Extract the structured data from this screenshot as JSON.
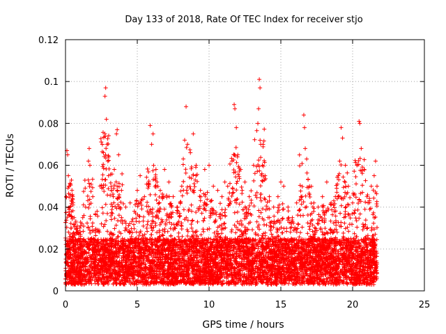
{
  "chart_data": {
    "type": "scatter",
    "title": "Day 133 of 2018, Rate Of TEC Index for receiver stjo",
    "xlabel": "GPS time / hours",
    "ylabel": "ROTI / TECUs",
    "xlim": [
      0,
      25
    ],
    "ylim": [
      0,
      0.12
    ],
    "x_ticks": [
      0,
      5,
      10,
      15,
      20,
      25
    ],
    "x_tick_labels": [
      "0",
      "5",
      "10",
      "15",
      "20",
      "25"
    ],
    "y_ticks": [
      0,
      0.02,
      0.04,
      0.06,
      0.08,
      0.1,
      0.12
    ],
    "y_tick_labels": [
      "0",
      "0.02",
      "0.04",
      "0.06",
      "0.08",
      "0.1",
      "0.12"
    ],
    "grid": true,
    "marker": "plus",
    "marker_color": "#ff0000",
    "series": [
      {
        "name": "ROTI",
        "points": [
          [
            0.05,
            0.045
          ],
          [
            0.1,
            0.067
          ],
          [
            0.15,
            0.065
          ],
          [
            0.2,
            0.055
          ],
          [
            0.25,
            0.05
          ],
          [
            0.3,
            0.04
          ],
          [
            0.4,
            0.03
          ],
          [
            0.5,
            0.045
          ],
          [
            0.6,
            0.035
          ],
          [
            0.8,
            0.028
          ],
          [
            1.0,
            0.03
          ],
          [
            1.2,
            0.035
          ],
          [
            1.4,
            0.04
          ],
          [
            1.6,
            0.062
          ],
          [
            1.65,
            0.068
          ],
          [
            1.7,
            0.06
          ],
          [
            1.9,
            0.045
          ],
          [
            2.2,
            0.038
          ],
          [
            2.5,
            0.032
          ],
          [
            2.75,
            0.093
          ],
          [
            2.8,
            0.097
          ],
          [
            2.85,
            0.082
          ],
          [
            2.9,
            0.07
          ],
          [
            2.95,
            0.062
          ],
          [
            3.0,
            0.055
          ],
          [
            3.2,
            0.048
          ],
          [
            3.4,
            0.058
          ],
          [
            3.55,
            0.075
          ],
          [
            3.6,
            0.077
          ],
          [
            3.7,
            0.065
          ],
          [
            3.9,
            0.048
          ],
          [
            4.2,
            0.04
          ],
          [
            4.5,
            0.042
          ],
          [
            4.8,
            0.038
          ],
          [
            5.0,
            0.048
          ],
          [
            5.2,
            0.055
          ],
          [
            5.5,
            0.045
          ],
          [
            5.8,
            0.05
          ],
          [
            5.9,
            0.079
          ],
          [
            6.0,
            0.07
          ],
          [
            6.1,
            0.075
          ],
          [
            6.3,
            0.058
          ],
          [
            6.6,
            0.048
          ],
          [
            6.9,
            0.058
          ],
          [
            7.2,
            0.052
          ],
          [
            7.5,
            0.045
          ],
          [
            7.8,
            0.04
          ],
          [
            8.1,
            0.05
          ],
          [
            8.3,
            0.072
          ],
          [
            8.4,
            0.088
          ],
          [
            8.5,
            0.07
          ],
          [
            8.7,
            0.066
          ],
          [
            8.9,
            0.075
          ],
          [
            9.1,
            0.06
          ],
          [
            9.4,
            0.048
          ],
          [
            9.7,
            0.058
          ],
          [
            10.0,
            0.06
          ],
          [
            10.3,
            0.05
          ],
          [
            10.6,
            0.048
          ],
          [
            10.9,
            0.045
          ],
          [
            11.1,
            0.052
          ],
          [
            11.3,
            0.05
          ],
          [
            11.6,
            0.062
          ],
          [
            11.75,
            0.089
          ],
          [
            11.8,
            0.087
          ],
          [
            11.9,
            0.078
          ],
          [
            12.0,
            0.065
          ],
          [
            12.2,
            0.058
          ],
          [
            12.5,
            0.052
          ],
          [
            12.8,
            0.045
          ],
          [
            13.1,
            0.06
          ],
          [
            13.4,
            0.08
          ],
          [
            13.45,
            0.087
          ],
          [
            13.5,
            0.101
          ],
          [
            13.55,
            0.097
          ],
          [
            13.6,
            0.07
          ],
          [
            13.9,
            0.055
          ],
          [
            14.2,
            0.045
          ],
          [
            14.5,
            0.04
          ],
          [
            14.8,
            0.045
          ],
          [
            15.0,
            0.052
          ],
          [
            15.2,
            0.05
          ],
          [
            15.5,
            0.04
          ],
          [
            15.8,
            0.035
          ],
          [
            16.1,
            0.042
          ],
          [
            16.4,
            0.045
          ],
          [
            16.6,
            0.084
          ],
          [
            16.65,
            0.078
          ],
          [
            16.7,
            0.068
          ],
          [
            16.8,
            0.063
          ],
          [
            17.0,
            0.05
          ],
          [
            17.3,
            0.042
          ],
          [
            17.6,
            0.04
          ],
          [
            17.9,
            0.045
          ],
          [
            18.2,
            0.052
          ],
          [
            18.5,
            0.042
          ],
          [
            18.8,
            0.045
          ],
          [
            19.0,
            0.055
          ],
          [
            19.1,
            0.062
          ],
          [
            19.2,
            0.078
          ],
          [
            19.3,
            0.073
          ],
          [
            19.5,
            0.06
          ],
          [
            19.7,
            0.05
          ],
          [
            20.0,
            0.042
          ],
          [
            20.3,
            0.06
          ],
          [
            20.45,
            0.081
          ],
          [
            20.5,
            0.08
          ],
          [
            20.6,
            0.068
          ],
          [
            20.8,
            0.058
          ],
          [
            21.0,
            0.045
          ],
          [
            21.3,
            0.05
          ],
          [
            21.5,
            0.055
          ],
          [
            21.6,
            0.062
          ],
          [
            21.7,
            0.05
          ]
        ]
      }
    ]
  }
}
